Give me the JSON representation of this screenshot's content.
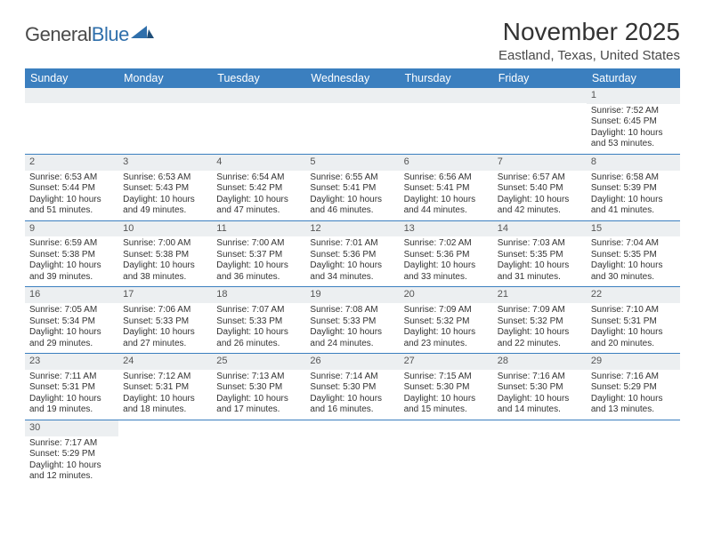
{
  "logo": {
    "word1": "General",
    "word2": "Blue"
  },
  "title": "November 2025",
  "location": "Eastland, Texas, United States",
  "colors": {
    "header_bg": "#3b7fbf",
    "header_text": "#ffffff",
    "daynum_bg": "#eceff1",
    "rule": "#3b7fbf",
    "text": "#333333"
  },
  "weekdays": [
    "Sunday",
    "Monday",
    "Tuesday",
    "Wednesday",
    "Thursday",
    "Friday",
    "Saturday"
  ],
  "weeks": [
    [
      null,
      null,
      null,
      null,
      null,
      null,
      {
        "n": "1",
        "sr": "Sunrise: 7:52 AM",
        "ss": "Sunset: 6:45 PM",
        "dl1": "Daylight: 10 hours",
        "dl2": "and 53 minutes."
      }
    ],
    [
      {
        "n": "2",
        "sr": "Sunrise: 6:53 AM",
        "ss": "Sunset: 5:44 PM",
        "dl1": "Daylight: 10 hours",
        "dl2": "and 51 minutes."
      },
      {
        "n": "3",
        "sr": "Sunrise: 6:53 AM",
        "ss": "Sunset: 5:43 PM",
        "dl1": "Daylight: 10 hours",
        "dl2": "and 49 minutes."
      },
      {
        "n": "4",
        "sr": "Sunrise: 6:54 AM",
        "ss": "Sunset: 5:42 PM",
        "dl1": "Daylight: 10 hours",
        "dl2": "and 47 minutes."
      },
      {
        "n": "5",
        "sr": "Sunrise: 6:55 AM",
        "ss": "Sunset: 5:41 PM",
        "dl1": "Daylight: 10 hours",
        "dl2": "and 46 minutes."
      },
      {
        "n": "6",
        "sr": "Sunrise: 6:56 AM",
        "ss": "Sunset: 5:41 PM",
        "dl1": "Daylight: 10 hours",
        "dl2": "and 44 minutes."
      },
      {
        "n": "7",
        "sr": "Sunrise: 6:57 AM",
        "ss": "Sunset: 5:40 PM",
        "dl1": "Daylight: 10 hours",
        "dl2": "and 42 minutes."
      },
      {
        "n": "8",
        "sr": "Sunrise: 6:58 AM",
        "ss": "Sunset: 5:39 PM",
        "dl1": "Daylight: 10 hours",
        "dl2": "and 41 minutes."
      }
    ],
    [
      {
        "n": "9",
        "sr": "Sunrise: 6:59 AM",
        "ss": "Sunset: 5:38 PM",
        "dl1": "Daylight: 10 hours",
        "dl2": "and 39 minutes."
      },
      {
        "n": "10",
        "sr": "Sunrise: 7:00 AM",
        "ss": "Sunset: 5:38 PM",
        "dl1": "Daylight: 10 hours",
        "dl2": "and 38 minutes."
      },
      {
        "n": "11",
        "sr": "Sunrise: 7:00 AM",
        "ss": "Sunset: 5:37 PM",
        "dl1": "Daylight: 10 hours",
        "dl2": "and 36 minutes."
      },
      {
        "n": "12",
        "sr": "Sunrise: 7:01 AM",
        "ss": "Sunset: 5:36 PM",
        "dl1": "Daylight: 10 hours",
        "dl2": "and 34 minutes."
      },
      {
        "n": "13",
        "sr": "Sunrise: 7:02 AM",
        "ss": "Sunset: 5:36 PM",
        "dl1": "Daylight: 10 hours",
        "dl2": "and 33 minutes."
      },
      {
        "n": "14",
        "sr": "Sunrise: 7:03 AM",
        "ss": "Sunset: 5:35 PM",
        "dl1": "Daylight: 10 hours",
        "dl2": "and 31 minutes."
      },
      {
        "n": "15",
        "sr": "Sunrise: 7:04 AM",
        "ss": "Sunset: 5:35 PM",
        "dl1": "Daylight: 10 hours",
        "dl2": "and 30 minutes."
      }
    ],
    [
      {
        "n": "16",
        "sr": "Sunrise: 7:05 AM",
        "ss": "Sunset: 5:34 PM",
        "dl1": "Daylight: 10 hours",
        "dl2": "and 29 minutes."
      },
      {
        "n": "17",
        "sr": "Sunrise: 7:06 AM",
        "ss": "Sunset: 5:33 PM",
        "dl1": "Daylight: 10 hours",
        "dl2": "and 27 minutes."
      },
      {
        "n": "18",
        "sr": "Sunrise: 7:07 AM",
        "ss": "Sunset: 5:33 PM",
        "dl1": "Daylight: 10 hours",
        "dl2": "and 26 minutes."
      },
      {
        "n": "19",
        "sr": "Sunrise: 7:08 AM",
        "ss": "Sunset: 5:33 PM",
        "dl1": "Daylight: 10 hours",
        "dl2": "and 24 minutes."
      },
      {
        "n": "20",
        "sr": "Sunrise: 7:09 AM",
        "ss": "Sunset: 5:32 PM",
        "dl1": "Daylight: 10 hours",
        "dl2": "and 23 minutes."
      },
      {
        "n": "21",
        "sr": "Sunrise: 7:09 AM",
        "ss": "Sunset: 5:32 PM",
        "dl1": "Daylight: 10 hours",
        "dl2": "and 22 minutes."
      },
      {
        "n": "22",
        "sr": "Sunrise: 7:10 AM",
        "ss": "Sunset: 5:31 PM",
        "dl1": "Daylight: 10 hours",
        "dl2": "and 20 minutes."
      }
    ],
    [
      {
        "n": "23",
        "sr": "Sunrise: 7:11 AM",
        "ss": "Sunset: 5:31 PM",
        "dl1": "Daylight: 10 hours",
        "dl2": "and 19 minutes."
      },
      {
        "n": "24",
        "sr": "Sunrise: 7:12 AM",
        "ss": "Sunset: 5:31 PM",
        "dl1": "Daylight: 10 hours",
        "dl2": "and 18 minutes."
      },
      {
        "n": "25",
        "sr": "Sunrise: 7:13 AM",
        "ss": "Sunset: 5:30 PM",
        "dl1": "Daylight: 10 hours",
        "dl2": "and 17 minutes."
      },
      {
        "n": "26",
        "sr": "Sunrise: 7:14 AM",
        "ss": "Sunset: 5:30 PM",
        "dl1": "Daylight: 10 hours",
        "dl2": "and 16 minutes."
      },
      {
        "n": "27",
        "sr": "Sunrise: 7:15 AM",
        "ss": "Sunset: 5:30 PM",
        "dl1": "Daylight: 10 hours",
        "dl2": "and 15 minutes."
      },
      {
        "n": "28",
        "sr": "Sunrise: 7:16 AM",
        "ss": "Sunset: 5:30 PM",
        "dl1": "Daylight: 10 hours",
        "dl2": "and 14 minutes."
      },
      {
        "n": "29",
        "sr": "Sunrise: 7:16 AM",
        "ss": "Sunset: 5:29 PM",
        "dl1": "Daylight: 10 hours",
        "dl2": "and 13 minutes."
      }
    ],
    [
      {
        "n": "30",
        "sr": "Sunrise: 7:17 AM",
        "ss": "Sunset: 5:29 PM",
        "dl1": "Daylight: 10 hours",
        "dl2": "and 12 minutes."
      },
      null,
      null,
      null,
      null,
      null,
      null
    ]
  ]
}
